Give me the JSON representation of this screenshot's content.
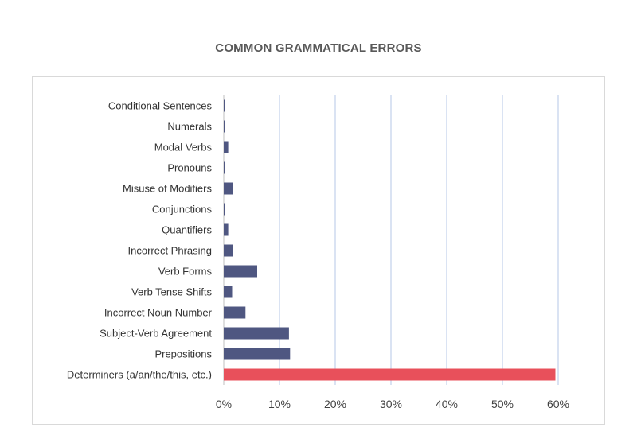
{
  "chart_data": {
    "type": "bar",
    "orientation": "horizontal",
    "title": "COMMON GRAMMATICAL ERRORS",
    "categories": [
      "Conditional Sentences",
      "Numerals",
      "Modal Verbs",
      "Pronouns",
      "Misuse of Modifiers",
      "Conjunctions",
      "Quantifiers",
      "Incorrect Phrasing",
      "Verb Forms",
      "Verb Tense Shifts",
      "Incorrect Noun Number",
      "Subject-Verb Agreement",
      "Prepositions",
      "Determiners (a/an/the/this, etc.)"
    ],
    "values": [
      0.2,
      0.1,
      0.8,
      0.2,
      1.7,
      0.1,
      0.8,
      1.6,
      6.0,
      1.5,
      3.9,
      11.7,
      11.9,
      59.5
    ],
    "value_unit": "%",
    "xlim": [
      0,
      60
    ],
    "x_ticks": [
      "0%",
      "10%",
      "20%",
      "30%",
      "40%",
      "50%",
      "60%"
    ],
    "grid": "vertical",
    "colors": {
      "bar": "#4f5781",
      "highlight_bar": "#e8505b",
      "gridline": "#b4c7e7",
      "axis": "#bfbfbf"
    },
    "highlight_category": "Determiners (a/an/the/this, etc.)"
  }
}
